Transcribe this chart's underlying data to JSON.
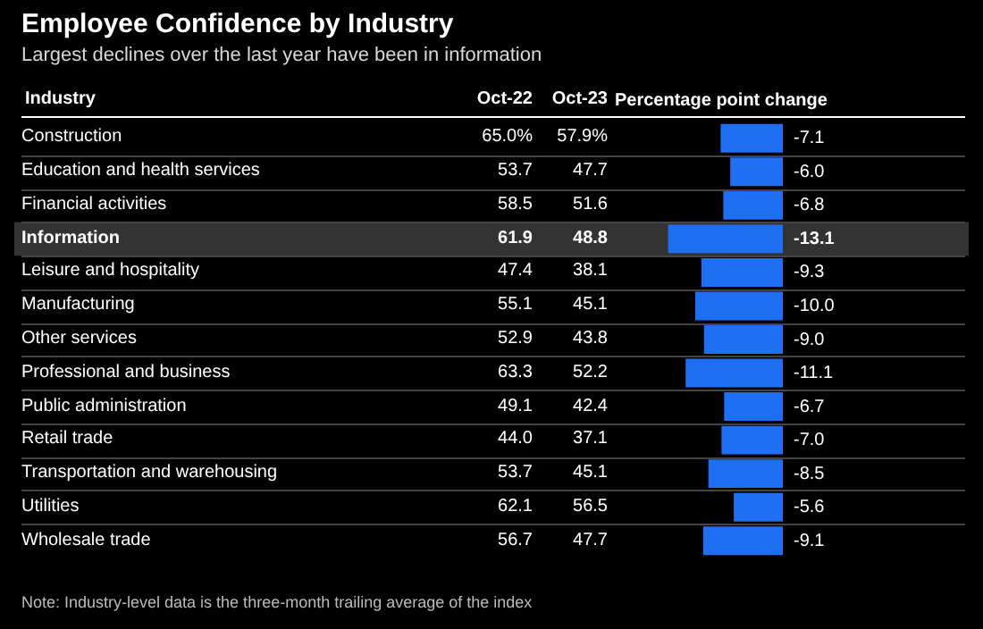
{
  "chart_data": [
    {
      "type": "other",
      "title": "Employee Confidence by Industry",
      "subtitle": "Largest declines over the last year have been in information",
      "ylabel": "Industry",
      "categories": [
        "Construction",
        "Education and health services",
        "Financial activities",
        "Information",
        "Leisure and hospitality",
        "Manufacturing",
        "Other services",
        "Professional and business",
        "Public administration",
        "Retail trade",
        "Transportation and warehousing",
        "Utilities",
        "Wholesale trade"
      ],
      "series": [
        {
          "name": "Oct-22",
          "values": [
            65.0,
            53.7,
            58.5,
            61.9,
            47.4,
            55.1,
            52.9,
            63.3,
            49.1,
            44.0,
            53.7,
            62.1,
            56.7
          ],
          "value_labels": [
            "65.0%",
            "53.7",
            "58.5",
            "61.9",
            "47.4",
            "55.1",
            "52.9",
            "63.3",
            "49.1",
            "44.0",
            "53.7",
            "62.1",
            "56.7"
          ]
        },
        {
          "name": "Oct-23",
          "values": [
            57.9,
            47.7,
            51.6,
            48.8,
            38.1,
            45.1,
            43.8,
            52.2,
            42.4,
            37.1,
            45.1,
            56.5,
            47.7
          ],
          "value_labels": [
            "57.9%",
            "47.7",
            "51.6",
            "48.8",
            "38.1",
            "45.1",
            "43.8",
            "52.2",
            "42.4",
            "37.1",
            "45.1",
            "56.5",
            "47.7"
          ]
        }
      ],
      "annotations": [
        "Note: Industry-level data is the three-month trailing average of the index"
      ]
    },
    {
      "type": "bar",
      "orientation": "horizontal",
      "xlabel": "Percentage point change",
      "tick_labels": false,
      "categories": [
        "Construction",
        "Education and health services",
        "Financial activities",
        "Information",
        "Leisure and hospitality",
        "Manufacturing",
        "Other services",
        "Professional and business",
        "Public administration",
        "Retail trade",
        "Transportation and warehousing",
        "Utilities",
        "Wholesale trade"
      ],
      "series": [
        {
          "color": "#1f6ff2",
          "values": [
            -7.1,
            -6.0,
            -6.8,
            -13.1,
            -9.3,
            -10.0,
            -9.0,
            -11.1,
            -6.7,
            -7.0,
            -8.5,
            -5.6,
            -9.1
          ],
          "value_labels": [
            "-7.1",
            "-6.0",
            "-6.8",
            "-13.1",
            "-9.3",
            "-10.0",
            "-9.0",
            "-11.1",
            "-6.7",
            "-7.0",
            "-8.5",
            "-5.6",
            "-9.1"
          ]
        }
      ],
      "grid": "y",
      "legend": false,
      "bands": [
        {
          "axis": "y",
          "from": "Information",
          "to": "Information",
          "color": "#333333"
        }
      ]
    }
  ]
}
